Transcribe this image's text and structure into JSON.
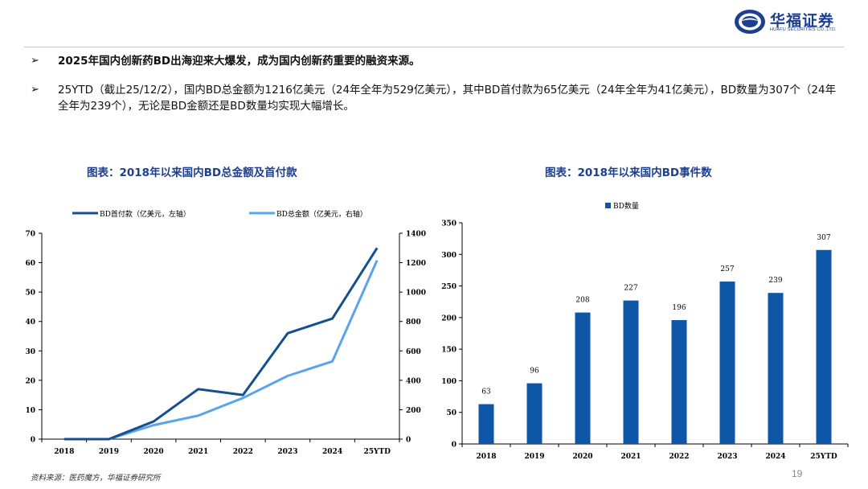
{
  "logo": {
    "cn": "华福证券",
    "en": "HUAFU SECURITIES CO.,LTD."
  },
  "bullets": [
    {
      "marker": "➢",
      "text": "2025年国内创新药BD出海迎来大爆发，成为国内创新药重要的融资来源。"
    },
    {
      "marker": "➢",
      "text": "25YTD（截止25/12/2），国内BD总金额为1216亿美元（24年全年为529亿美元），其中BD首付款为65亿美元（24年全年为41亿美元），BD数量为307个（24年全年为239个），无论是BD金额还是BD数量均实现大幅增长。"
    }
  ],
  "chart1_title": "图表：2018年以来国内BD总金额及首付款",
  "chart2_title": "图表：2018年以来国内BD事件数",
  "source": "资料来源：医药魔方，华福证券研究所",
  "page_number": "19",
  "chart_data": [
    {
      "type": "line",
      "categories": [
        "2018",
        "2019",
        "2020",
        "2021",
        "2022",
        "2023",
        "2024",
        "25YTD"
      ],
      "series": [
        {
          "name": "BD首付款（亿美元，左轴）",
          "axis": "left",
          "color": "#14508f",
          "values": [
            0,
            0,
            6,
            17,
            15,
            36,
            41,
            65
          ]
        },
        {
          "name": "BD总金额（亿美元，右轴）",
          "axis": "right",
          "color": "#5aa5ea",
          "values": [
            0,
            0,
            95,
            160,
            280,
            430,
            529,
            1216
          ]
        }
      ],
      "ylim_left": [
        0,
        70
      ],
      "yticks_left": [
        "0",
        "10",
        "20",
        "30",
        "40",
        "50",
        "60",
        "70"
      ],
      "ylim_right": [
        0,
        1400
      ],
      "yticks_right": [
        "0",
        "200",
        "400",
        "600",
        "800",
        "1000",
        "1200",
        "1400"
      ],
      "legend": "top"
    },
    {
      "type": "bar",
      "categories": [
        "2018",
        "2019",
        "2020",
        "2021",
        "2022",
        "2023",
        "2024",
        "25YTD"
      ],
      "series": [
        {
          "name": "BD数量",
          "color": "#0e56a6",
          "values": [
            63,
            96,
            208,
            227,
            196,
            257,
            239,
            307
          ]
        }
      ],
      "ylim": [
        0,
        350
      ],
      "yticks": [
        "0",
        "50",
        "100",
        "150",
        "200",
        "250",
        "300",
        "350"
      ],
      "legend": "top-left"
    }
  ]
}
